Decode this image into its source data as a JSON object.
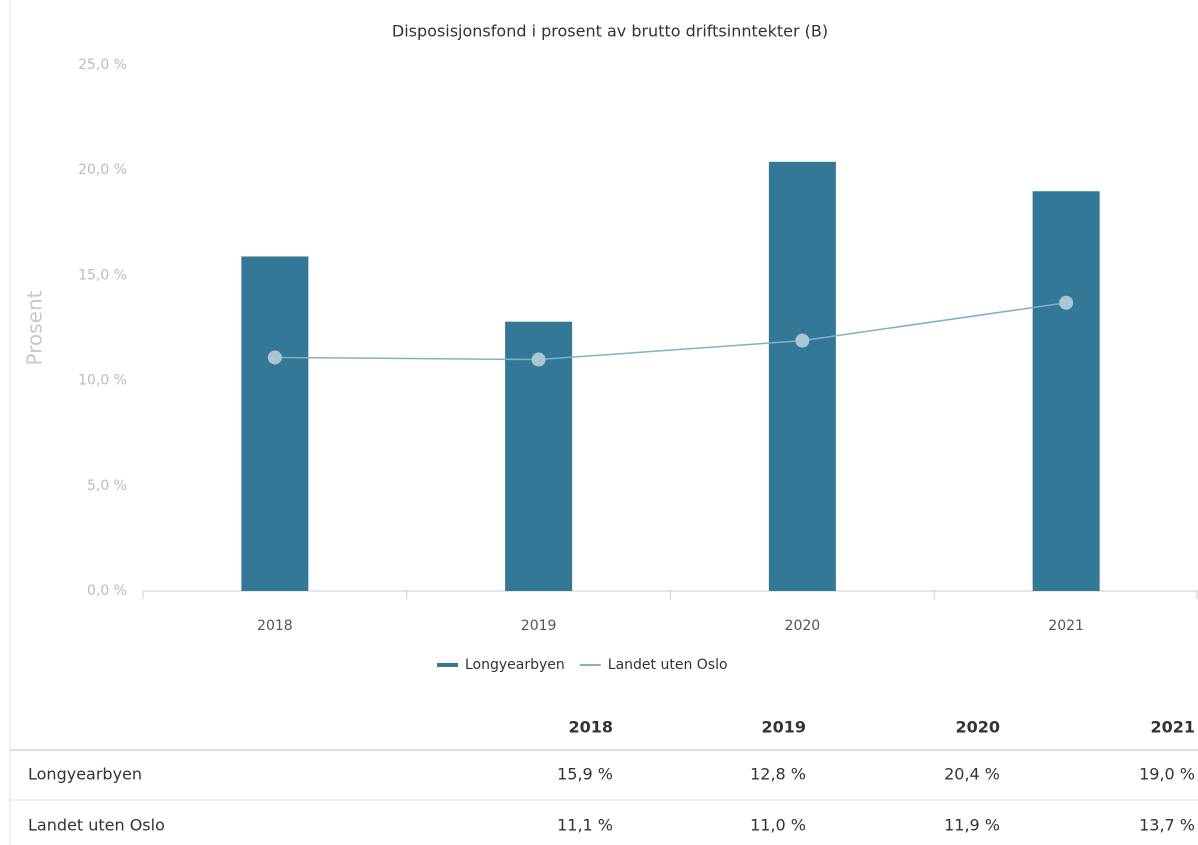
{
  "chart_data": {
    "type": "bar",
    "title": "Disposisjonsfond i prosent av brutto driftsinntekter (B)",
    "ylabel": "Prosent",
    "categories": [
      "2018",
      "2019",
      "2020",
      "2021"
    ],
    "series": [
      {
        "name": "Longyearbyen",
        "type": "bar",
        "color": "#337896",
        "values": [
          15.9,
          12.8,
          20.4,
          19.0
        ]
      },
      {
        "name": "Landet uten Oslo",
        "type": "line",
        "color": "#7fb2c6",
        "marker_color": "#a9c6d2",
        "values": [
          11.1,
          11.0,
          11.9,
          13.7
        ]
      }
    ],
    "ylim": [
      0,
      25
    ],
    "yticks": [
      {
        "value": 0,
        "label": "0,0 %"
      },
      {
        "value": 5,
        "label": "5,0 %"
      },
      {
        "value": 10,
        "label": "10,0 %"
      },
      {
        "value": 15,
        "label": "15,0 %"
      },
      {
        "value": 20,
        "label": "20,0 %"
      },
      {
        "value": 25,
        "label": "25,0 %"
      }
    ],
    "grid": false,
    "legend": "bottom"
  },
  "table": {
    "header": [
      "2018",
      "2019",
      "2020",
      "2021"
    ],
    "rows": [
      [
        "Longyearbyen",
        "15,9 %",
        "12,8 %",
        "20,4 %",
        "19,0 %"
      ],
      [
        "Landet uten Oslo",
        "11,1 %",
        "11,0 %",
        "11,9 %",
        "13,7 %"
      ]
    ]
  }
}
